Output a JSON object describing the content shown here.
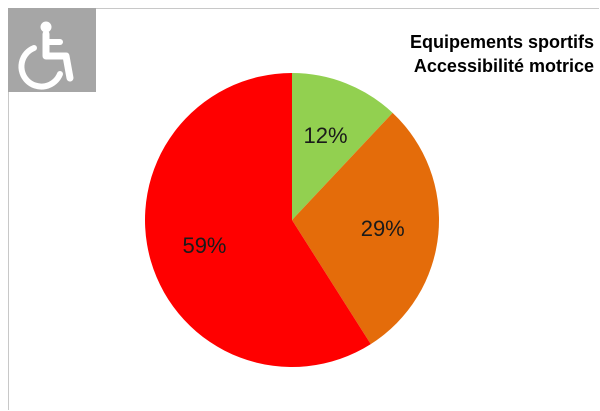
{
  "chart_data": {
    "type": "pie",
    "title_lines": [
      "Equipements sportifs",
      "Accessibilité motrice"
    ],
    "slices": [
      {
        "value": 12,
        "label": "12%",
        "color": "#92d050"
      },
      {
        "value": 29,
        "label": "29%",
        "color": "#e46c0a"
      },
      {
        "value": 59,
        "label": "59%",
        "color": "#ff0000"
      }
    ],
    "start": "12 o'clock",
    "direction": "clockwise",
    "legend": "none"
  },
  "icons": {
    "logo": "wheelchair-accessibility-icon"
  }
}
